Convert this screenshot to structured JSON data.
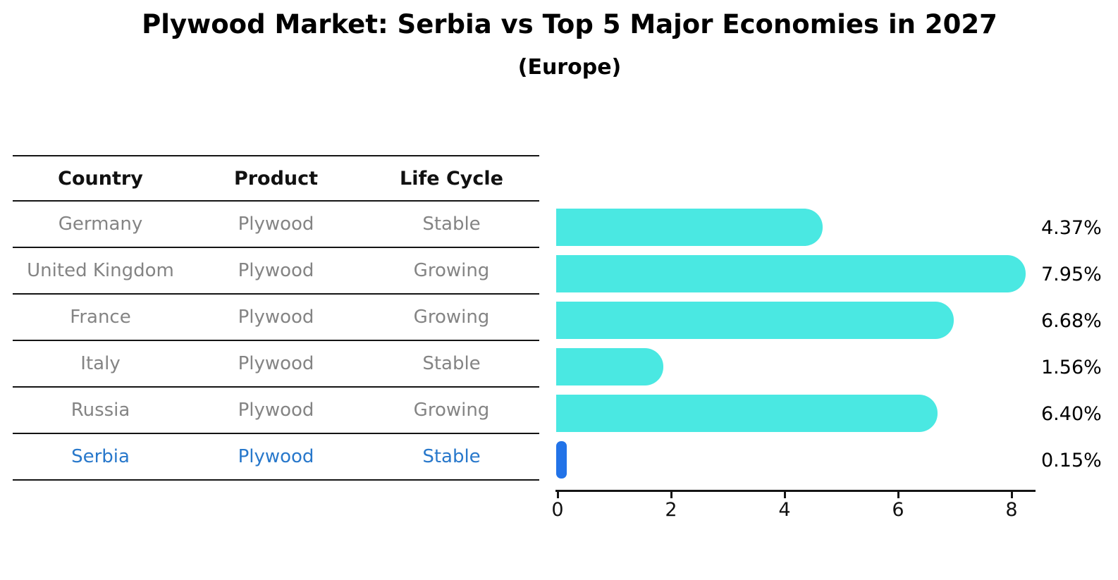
{
  "title": "Plywood Market: Serbia vs Top 5 Major Economies in 2027",
  "subtitle": "(Europe)",
  "table": {
    "columns": [
      "Country",
      "Product",
      "Life Cycle"
    ],
    "rows": [
      {
        "country": "Germany",
        "product": "Plywood",
        "life_cycle": "Stable",
        "highlight": false
      },
      {
        "country": "United Kingdom",
        "product": "Plywood",
        "life_cycle": "Growing",
        "highlight": false
      },
      {
        "country": "France",
        "product": "Plywood",
        "life_cycle": "Growing",
        "highlight": false
      },
      {
        "country": "Italy",
        "product": "Plywood",
        "life_cycle": "Stable",
        "highlight": false
      },
      {
        "country": "Russia",
        "product": "Plywood",
        "life_cycle": "Growing",
        "highlight": false
      },
      {
        "country": "Serbia",
        "product": "Plywood",
        "life_cycle": "Stable",
        "highlight": true
      }
    ]
  },
  "chart_data": {
    "type": "bar",
    "orientation": "horizontal",
    "title": "Plywood Market: Serbia vs Top 5 Major Economies in 2027 (Europe)",
    "categories": [
      "Germany",
      "United Kingdom",
      "France",
      "Italy",
      "Russia",
      "Serbia"
    ],
    "values": [
      4.37,
      7.95,
      6.68,
      1.56,
      6.4,
      0.15
    ],
    "value_labels": [
      "4.37%",
      "7.95%",
      "6.68%",
      "1.56%",
      "6.40%",
      "0.15%"
    ],
    "highlight_index": 5,
    "x_ticks": [
      "0",
      "2",
      "4",
      "6",
      "8"
    ],
    "x_tick_values": [
      0,
      2,
      4,
      6,
      8
    ],
    "xlim": [
      0,
      8.45
    ],
    "grid": false,
    "legend": "none",
    "colors": {
      "bar_default": "#4ae8e2",
      "bar_highlight": "#2273e8",
      "highlight_text": "#2878cb"
    }
  }
}
